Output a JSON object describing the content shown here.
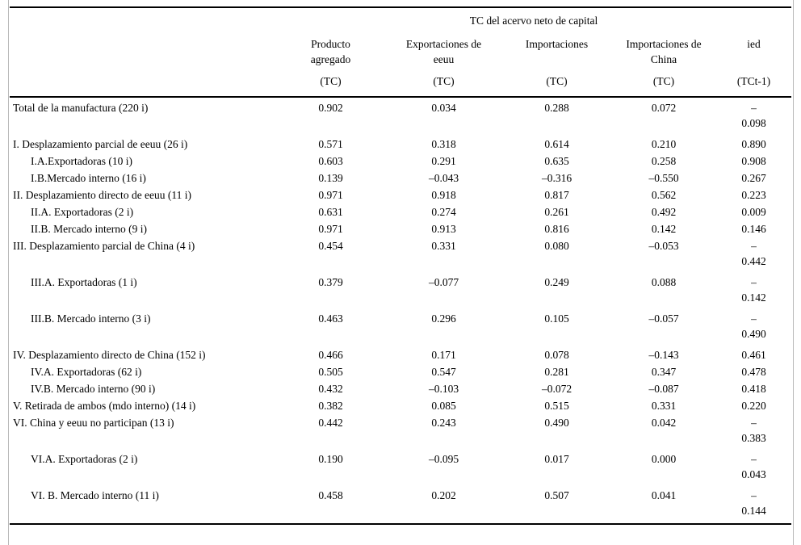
{
  "page": {
    "background_color": "#ffffff",
    "rule_color": "#000000",
    "frame_line_color": "#b9b9b9"
  },
  "table": {
    "title": "TC del acervo neto de capital",
    "columns": [
      {
        "name": "Producto\nagregado",
        "sub": "(TC)"
      },
      {
        "name": "Exportaciones de\neeuu",
        "sub": "(TC)"
      },
      {
        "name": "Importaciones",
        "sub": "(TC)"
      },
      {
        "name": "Importaciones de\nChina",
        "sub": "(TC)"
      },
      {
        "name": "ied",
        "sub": "(TCt-1)"
      }
    ],
    "rows": [
      {
        "label": "Total de la manufactura (220 i)",
        "indent": 0,
        "values": [
          "0.902",
          "0.034",
          "0.288",
          "0.072",
          "–\n0.098"
        ]
      },
      {
        "label": "I. Desplazamiento parcial de eeuu (26 i)",
        "indent": 0,
        "values": [
          "0.571",
          "0.318",
          "0.614",
          "0.210",
          "0.890"
        ]
      },
      {
        "label": "I.A.Exportadoras (10 i)",
        "indent": 1,
        "values": [
          "0.603",
          "0.291",
          "0.635",
          "0.258",
          "0.908"
        ]
      },
      {
        "label": "I.B.Mercado interno (16 i)",
        "indent": 1,
        "values": [
          "0.139",
          "–0.043",
          "–0.316",
          "–0.550",
          "0.267"
        ]
      },
      {
        "label": "II. Desplazamiento directo de eeuu (11 i)",
        "indent": 0,
        "values": [
          "0.971",
          "0.918",
          "0.817",
          "0.562",
          "0.223"
        ]
      },
      {
        "label": "II.A. Exportadoras (2 i)",
        "indent": 1,
        "values": [
          "0.631",
          "0.274",
          "0.261",
          "0.492",
          "0.009"
        ]
      },
      {
        "label": "II.B. Mercado interno (9 i)",
        "indent": 1,
        "values": [
          "0.971",
          "0.913",
          "0.816",
          "0.142",
          "0.146"
        ]
      },
      {
        "label": "III. Desplazamiento parcial de China (4 i)",
        "indent": 0,
        "values": [
          "0.454",
          "0.331",
          "0.080",
          "–0.053",
          "–\n0.442"
        ]
      },
      {
        "label": "III.A. Exportadoras (1 i)",
        "indent": 1,
        "values": [
          "0.379",
          "–0.077",
          "0.249",
          "0.088",
          "–\n0.142"
        ]
      },
      {
        "label": "III.B. Mercado interno (3 i)",
        "indent": 1,
        "values": [
          "0.463",
          "0.296",
          "0.105",
          "–0.057",
          "–\n0.490"
        ]
      },
      {
        "label": "IV. Desplazamiento directo de China (152 i)",
        "indent": 0,
        "values": [
          "0.466",
          "0.171",
          "0.078",
          "–0.143",
          "0.461"
        ]
      },
      {
        "label": "IV.A. Exportadoras (62 i)",
        "indent": 1,
        "values": [
          "0.505",
          "0.547",
          "0.281",
          "0.347",
          "0.478"
        ]
      },
      {
        "label": "IV.B. Mercado interno (90 i)",
        "indent": 1,
        "values": [
          "0.432",
          "–0.103",
          "–0.072",
          "–0.087",
          "0.418"
        ]
      },
      {
        "label": "V. Retirada de ambos (mdo interno) (14 i)",
        "indent": 0,
        "values": [
          "0.382",
          "0.085",
          "0.515",
          "0.331",
          "0.220"
        ]
      },
      {
        "label": "VI. China y eeuu no participan (13 i)",
        "indent": 0,
        "values": [
          "0.442",
          "0.243",
          "0.490",
          "0.042",
          "–\n0.383"
        ]
      },
      {
        "label": "VI.A. Exportadoras (2 i)",
        "indent": 1,
        "values": [
          "0.190",
          "–0.095",
          "0.017",
          "0.000",
          "–\n0.043"
        ]
      },
      {
        "label": "VI. B. Mercado interno (11 i)",
        "indent": 1,
        "values": [
          "0.458",
          "0.202",
          "0.507",
          "0.041",
          "–\n0.144"
        ]
      }
    ]
  }
}
